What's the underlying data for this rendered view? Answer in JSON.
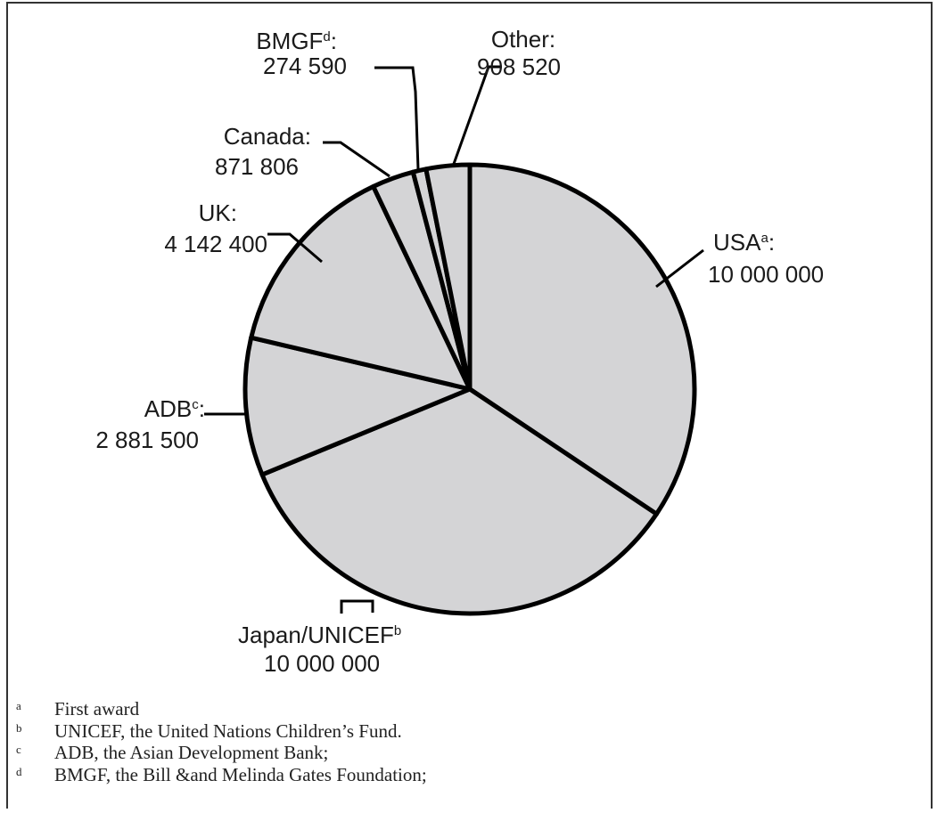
{
  "chart_data": {
    "type": "pie",
    "title": "",
    "slices": [
      {
        "label": "USA",
        "marker": "a",
        "value_label": "10 000 000",
        "value": 10000000
      },
      {
        "label": "Japan/UNICEF",
        "marker": "b",
        "value_label": "10 000 000",
        "value": 10000000
      },
      {
        "label": "ADB",
        "marker": "c",
        "value_label": "2 881 500",
        "value": 2881500
      },
      {
        "label": "UK",
        "marker": "",
        "value_label": "4 142 400",
        "value": 4142400
      },
      {
        "label": "Canada",
        "marker": "",
        "value_label": "871 806",
        "value": 871806
      },
      {
        "label": "BMGF",
        "marker": "d",
        "value_label": "274 590",
        "value": 274590
      },
      {
        "label": "Other",
        "marker": "",
        "value_label": "908 520",
        "value": 908520
      }
    ],
    "slice_color": "#d4d4d6",
    "stroke_color": "#000000"
  },
  "footnotes": [
    {
      "mark": "a",
      "text": "First award"
    },
    {
      "mark": "b",
      "text": "UNICEF, the United Nations Children’s Fund."
    },
    {
      "mark": "c",
      "text": "ADB, the Asian Development Bank;"
    },
    {
      "mark": "d",
      "text": "BMGF, the Bill &and Melinda Gates Foundation;"
    }
  ]
}
